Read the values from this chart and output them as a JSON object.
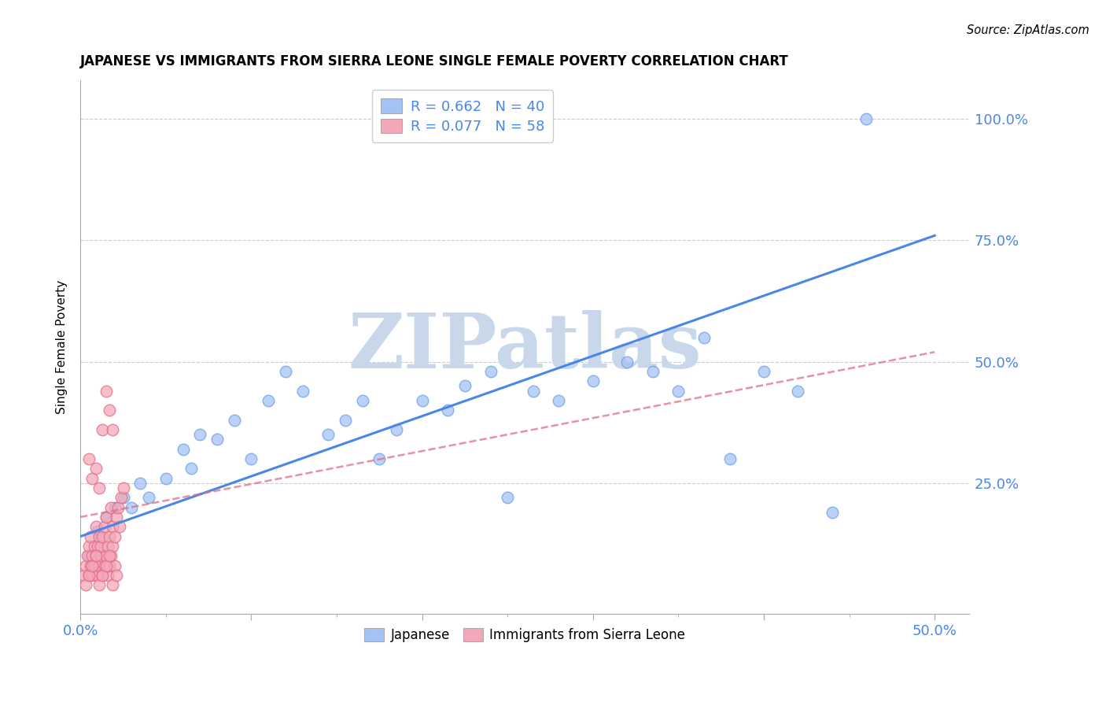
{
  "title": "JAPANESE VS IMMIGRANTS FROM SIERRA LEONE SINGLE FEMALE POVERTY CORRELATION CHART",
  "source": "Source: ZipAtlas.com",
  "ylabel": "Single Female Poverty",
  "xlim": [
    0.0,
    0.52
  ],
  "ylim": [
    -0.02,
    1.08
  ],
  "legend_r1": "R = 0.662",
  "legend_n1": "N = 40",
  "legend_r2": "R = 0.077",
  "legend_n2": "N = 58",
  "blue_color": "#a4c2f4",
  "pink_color": "#f4a7b9",
  "blue_edge_color": "#6d9eeb",
  "pink_edge_color": "#e06c84",
  "blue_line_color": "#4a86e8",
  "pink_line_color": "#e06c84",
  "watermark_color": "#c8d8ea",
  "tick_color": "#4a86e8",
  "grid_color": "#cccccc",
  "japanese_x": [
    0.005,
    0.01,
    0.015,
    0.02,
    0.025,
    0.03,
    0.035,
    0.04,
    0.05,
    0.06,
    0.065,
    0.07,
    0.08,
    0.09,
    0.1,
    0.11,
    0.12,
    0.13,
    0.145,
    0.155,
    0.165,
    0.175,
    0.185,
    0.2,
    0.215,
    0.225,
    0.24,
    0.25,
    0.265,
    0.28,
    0.3,
    0.32,
    0.335,
    0.35,
    0.365,
    0.38,
    0.4,
    0.42,
    0.44,
    0.46
  ],
  "japanese_y": [
    0.1,
    0.15,
    0.18,
    0.2,
    0.22,
    0.2,
    0.25,
    0.22,
    0.26,
    0.32,
    0.28,
    0.35,
    0.34,
    0.38,
    0.3,
    0.42,
    0.48,
    0.44,
    0.35,
    0.38,
    0.42,
    0.3,
    0.36,
    0.42,
    0.4,
    0.45,
    0.48,
    0.22,
    0.44,
    0.42,
    0.46,
    0.5,
    0.48,
    0.44,
    0.55,
    0.3,
    0.48,
    0.44,
    0.19,
    1.0
  ],
  "sierra_x": [
    0.002,
    0.003,
    0.004,
    0.005,
    0.005,
    0.006,
    0.006,
    0.007,
    0.007,
    0.008,
    0.008,
    0.009,
    0.009,
    0.01,
    0.01,
    0.011,
    0.011,
    0.012,
    0.012,
    0.013,
    0.013,
    0.014,
    0.014,
    0.015,
    0.015,
    0.016,
    0.016,
    0.017,
    0.017,
    0.018,
    0.018,
    0.019,
    0.019,
    0.02,
    0.02,
    0.021,
    0.022,
    0.023,
    0.024,
    0.025,
    0.005,
    0.007,
    0.009,
    0.011,
    0.013,
    0.015,
    0.017,
    0.019,
    0.003,
    0.005,
    0.007,
    0.009,
    0.011,
    0.013,
    0.015,
    0.017,
    0.019,
    0.021
  ],
  "sierra_y": [
    0.06,
    0.08,
    0.1,
    0.12,
    0.06,
    0.08,
    0.14,
    0.1,
    0.06,
    0.12,
    0.08,
    0.1,
    0.16,
    0.12,
    0.06,
    0.14,
    0.08,
    0.1,
    0.12,
    0.14,
    0.06,
    0.16,
    0.08,
    0.18,
    0.1,
    0.12,
    0.06,
    0.14,
    0.08,
    0.2,
    0.1,
    0.12,
    0.16,
    0.14,
    0.08,
    0.18,
    0.2,
    0.16,
    0.22,
    0.24,
    0.3,
    0.26,
    0.28,
    0.24,
    0.36,
    0.44,
    0.4,
    0.36,
    0.04,
    0.06,
    0.08,
    0.1,
    0.04,
    0.06,
    0.08,
    0.1,
    0.04,
    0.06
  ],
  "blue_trendline_x": [
    0.0,
    0.5
  ],
  "blue_trendline_y": [
    0.14,
    0.76
  ],
  "pink_trendline_x": [
    0.0,
    0.5
  ],
  "pink_trendline_y": [
    0.18,
    0.52
  ]
}
